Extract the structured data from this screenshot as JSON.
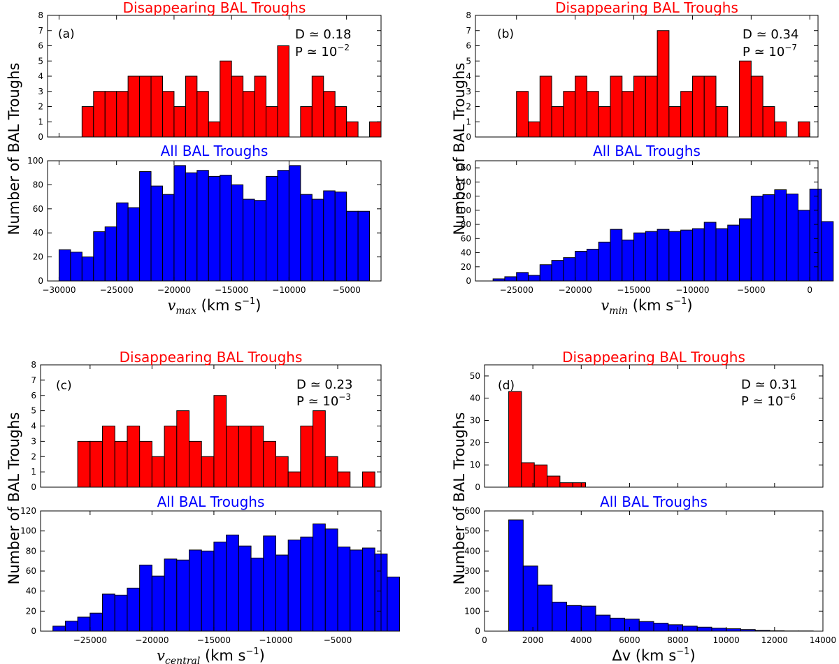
{
  "chart_data": [
    {
      "panel": "a",
      "type": "bar",
      "stats": {
        "D": "D ≃ 0.18",
        "P_base": "P ≃ 10",
        "P_exp": "−2"
      },
      "top": {
        "title": "Disappearing BAL Troughs",
        "color": "#ff0000",
        "ylim": [
          0,
          8
        ],
        "yticks": [
          0,
          1,
          2,
          3,
          4,
          5,
          6,
          7,
          8
        ],
        "bin_start": -28000,
        "bin_width": 1000,
        "values": [
          2,
          3,
          3,
          3,
          4,
          4,
          4,
          3,
          2,
          4,
          3,
          1,
          5,
          4,
          3,
          4,
          2,
          6,
          0,
          2,
          4,
          3,
          2,
          1,
          0,
          1
        ]
      },
      "bottom": {
        "title": "All BAL Troughs",
        "color": "#0000ff",
        "ylim": [
          0,
          100
        ],
        "yticks": [
          0,
          20,
          40,
          60,
          80,
          100
        ],
        "bin_start": -30000,
        "bin_width": 1000,
        "values": [
          26,
          24,
          20,
          41,
          45,
          65,
          61,
          91,
          79,
          72,
          96,
          90,
          92,
          87,
          88,
          80,
          68,
          67,
          87,
          92,
          96,
          72,
          68,
          75,
          74,
          58,
          58
        ]
      },
      "xlim": [
        -31000,
        -2000
      ],
      "xticks": [
        -30000,
        -25000,
        -20000,
        -15000,
        -10000,
        -5000
      ],
      "xlabel_sym": "v",
      "xlabel_sub": "max",
      "xlabel_unit": " (km s",
      "xlabel_exp": "−1",
      "xlabel_close": ")",
      "ylabel": "Number of BAL Troughs"
    },
    {
      "panel": "b",
      "type": "bar",
      "stats": {
        "D": "D ≃ 0.34",
        "P_base": "P ≃ 10",
        "P_exp": "−7"
      },
      "top": {
        "title": "Disappearing BAL Troughs",
        "color": "#ff0000",
        "ylim": [
          0,
          8
        ],
        "yticks": [
          0,
          1,
          2,
          3,
          4,
          5,
          6,
          7,
          8
        ],
        "bin_start": -25000,
        "bin_width": 1000,
        "values": [
          3,
          1,
          4,
          2,
          3,
          4,
          3,
          2,
          4,
          3,
          4,
          4,
          7,
          2,
          3,
          4,
          4,
          2,
          0,
          5,
          4,
          2,
          1,
          0,
          1
        ]
      },
      "bottom": {
        "title": "All BAL Troughs",
        "color": "#0000ff",
        "ylim": [
          0,
          170
        ],
        "yticks": [
          0,
          20,
          40,
          60,
          80,
          100,
          120,
          140,
          160
        ],
        "bin_start": -27000,
        "bin_width": 1000,
        "values": [
          3,
          6,
          12,
          8,
          23,
          29,
          33,
          42,
          45,
          55,
          73,
          58,
          68,
          70,
          73,
          70,
          72,
          74,
          83,
          74,
          79,
          88,
          120,
          122,
          129,
          123,
          100,
          130,
          84
        ]
      },
      "xlim": [
        -28500,
        700
      ],
      "xticks": [
        -25000,
        -20000,
        -15000,
        -10000,
        -5000,
        0
      ],
      "xlabel_sym": "v",
      "xlabel_sub": "min",
      "xlabel_unit": " (km s",
      "xlabel_exp": "−1",
      "xlabel_close": ")",
      "ylabel": "Number of BAL Troughs"
    },
    {
      "panel": "c",
      "type": "bar",
      "stats": {
        "D": "D ≃ 0.23",
        "P_base": "P ≃ 10",
        "P_exp": "−3"
      },
      "top": {
        "title": "Disappearing BAL Troughs",
        "color": "#ff0000",
        "ylim": [
          0,
          8
        ],
        "yticks": [
          0,
          1,
          2,
          3,
          4,
          5,
          6,
          7,
          8
        ],
        "bin_start": -26000,
        "bin_width": 1000,
        "values": [
          3,
          3,
          4,
          3,
          4,
          3,
          2,
          4,
          5,
          3,
          2,
          6,
          4,
          4,
          4,
          3,
          2,
          1,
          4,
          5,
          2,
          1,
          0,
          1
        ]
      },
      "bottom": {
        "title": "All BAL Troughs",
        "color": "#0000ff",
        "ylim": [
          0,
          120
        ],
        "yticks": [
          0,
          20,
          40,
          60,
          80,
          100,
          120
        ],
        "bin_start": -28000,
        "bin_width": 1000,
        "values": [
          5,
          10,
          14,
          18,
          37,
          36,
          43,
          66,
          55,
          72,
          71,
          81,
          80,
          89,
          96,
          85,
          73,
          95,
          76,
          91,
          94,
          107,
          102,
          84,
          81,
          83,
          77,
          54
        ]
      },
      "xlim": [
        -29000,
        -1500
      ],
      "xticks": [
        -25000,
        -20000,
        -15000,
        -10000,
        -5000
      ],
      "xlabel_sym": "v",
      "xlabel_sub": "central",
      "xlabel_unit": " (km s",
      "xlabel_exp": "−1",
      "xlabel_close": ")",
      "ylabel": "Number of BAL Troughs"
    },
    {
      "panel": "d",
      "type": "bar",
      "stats": {
        "D": "D ≃ 0.31",
        "P_base": "P ≃ 10",
        "P_exp": "−6"
      },
      "top": {
        "title": "Disappearing BAL Troughs",
        "color": "#ff0000",
        "ylim": [
          0,
          55
        ],
        "yticks": [
          0,
          10,
          20,
          30,
          40,
          50
        ],
        "bin_start": 1000,
        "bin_width": 530,
        "values": [
          43,
          11,
          10,
          5,
          2,
          2
        ]
      },
      "bottom": {
        "title": "All BAL Troughs",
        "color": "#0000ff",
        "ylim": [
          0,
          600
        ],
        "yticks": [
          0,
          100,
          200,
          300,
          400,
          500,
          600
        ],
        "bin_start": 1000,
        "bin_width": 600,
        "values": [
          555,
          325,
          230,
          145,
          128,
          125,
          80,
          65,
          60,
          48,
          40,
          32,
          25,
          20,
          15,
          12,
          8,
          4,
          2,
          1,
          1
        ]
      },
      "xlim": [
        0,
        14000
      ],
      "xticks": [
        0,
        2000,
        4000,
        6000,
        8000,
        10000,
        12000,
        14000
      ],
      "xlabel_sym": "Δv",
      "xlabel_sub": "",
      "xlabel_unit": " (km s",
      "xlabel_exp": "−1",
      "xlabel_close": ")",
      "ylabel": "Number of BAL Troughs"
    }
  ]
}
